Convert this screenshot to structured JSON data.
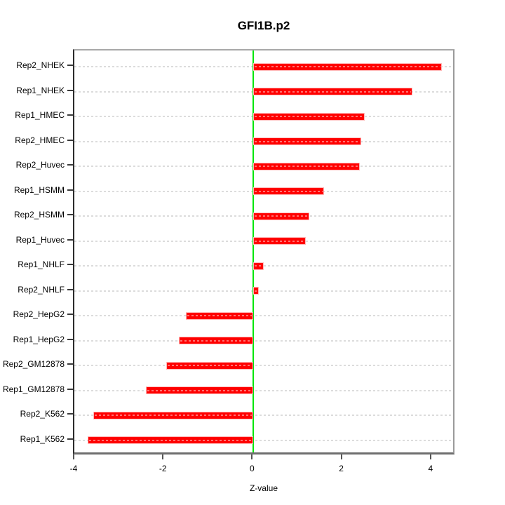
{
  "chart_data": {
    "type": "bar",
    "orientation": "horizontal",
    "title": "GFI1B.p2",
    "xlabel": "Z-value",
    "categories": [
      "Rep2_NHEK",
      "Rep1_NHEK",
      "Rep1_HMEC",
      "Rep2_HMEC",
      "Rep2_Huvec",
      "Rep1_HSMM",
      "Rep2_HSMM",
      "Rep1_Huvec",
      "Rep1_NHLF",
      "Rep2_NHLF",
      "Rep2_HepG2",
      "Rep1_HepG2",
      "Rep2_GM12878",
      "Rep1_GM12878",
      "Rep2_K562",
      "Rep1_K562"
    ],
    "values": [
      4.22,
      3.56,
      2.49,
      2.42,
      2.38,
      1.58,
      1.25,
      1.17,
      0.23,
      0.12,
      -1.51,
      -1.67,
      -1.96,
      -2.41,
      -3.59,
      -3.72
    ],
    "xticks": [
      -4,
      -2,
      0,
      2,
      4
    ],
    "xtick_labels": [
      "-4",
      "-2",
      "0",
      "2",
      "4"
    ],
    "xlim": [
      -4.02,
      4.54
    ],
    "grid": true,
    "legend_position": "none",
    "colors": {
      "bar": "#ff0000",
      "bar_dash_overlay": "rgba(255,255,255,0.45)",
      "zero_line": "#00e60a",
      "gridline": "#dcdcdc"
    }
  }
}
